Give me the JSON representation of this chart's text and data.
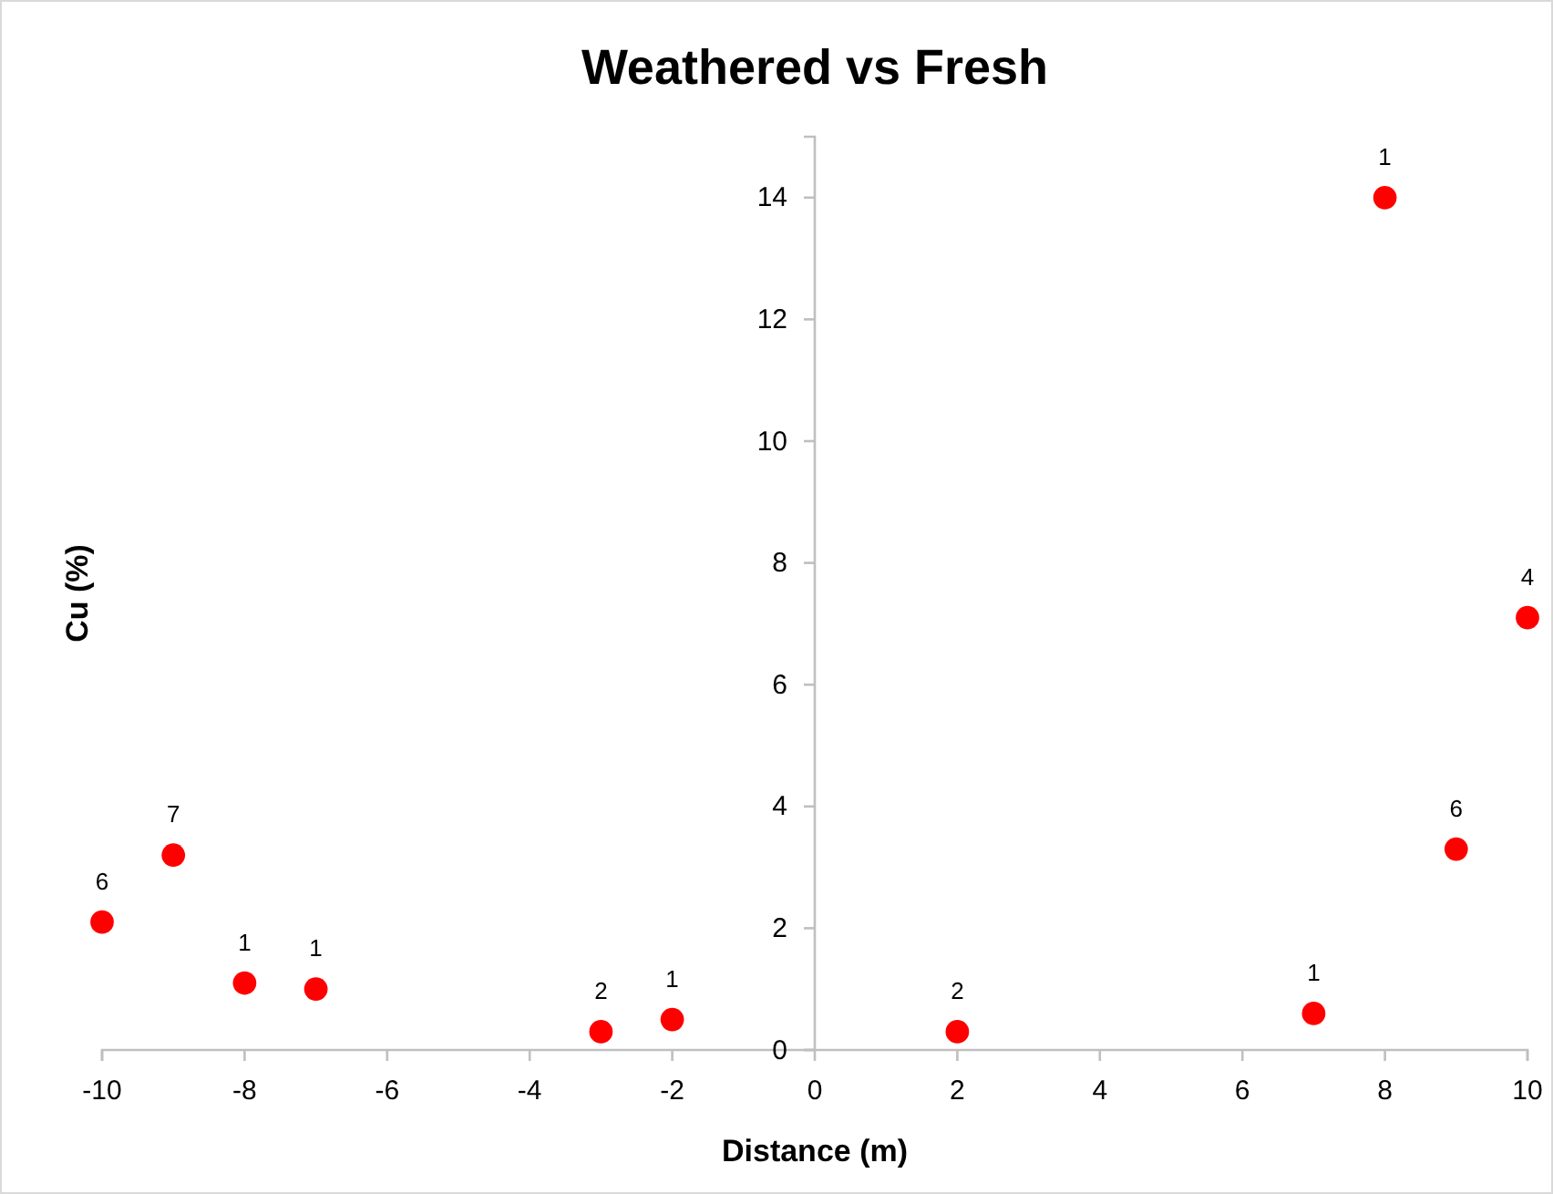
{
  "chart_data": {
    "type": "scatter",
    "title": "Weathered vs Fresh",
    "xlabel": "Distance (m)",
    "ylabel": "Cu (%)",
    "x": [
      -10,
      -9,
      -8,
      -7,
      -3,
      -2,
      2,
      7,
      8,
      9,
      10
    ],
    "series": [
      {
        "color": "#ff0000",
        "values": [
          2.1,
          3.2,
          1.1,
          1.0,
          0.3,
          0.5,
          0.3,
          0.6,
          14.0,
          3.3,
          7.1
        ]
      }
    ],
    "annotations": [
      {
        "text": "6",
        "x": -10,
        "y": 2.1
      },
      {
        "text": "7",
        "x": -9,
        "y": 3.2
      },
      {
        "text": "1",
        "x": -8,
        "y": 1.1
      },
      {
        "text": "1",
        "x": -7,
        "y": 1.0
      },
      {
        "text": "2",
        "x": -3,
        "y": 0.3
      },
      {
        "text": "1",
        "x": -2,
        "y": 0.5
      },
      {
        "text": "2",
        "x": 2,
        "y": 0.3
      },
      {
        "text": "1",
        "x": 7,
        "y": 0.6
      },
      {
        "text": "1",
        "x": 8,
        "y": 14.0
      },
      {
        "text": "6",
        "x": 9,
        "y": 3.3
      },
      {
        "text": "4",
        "x": 10,
        "y": 7.1
      }
    ],
    "xlim": [
      -10,
      10
    ],
    "xticks": [
      -10,
      -8,
      -6,
      -4,
      -2,
      0,
      2,
      4,
      6,
      8,
      10
    ],
    "ylim": [
      0,
      15
    ],
    "yticks": [
      0,
      2,
      4,
      6,
      8,
      10,
      12,
      14
    ],
    "grid": false,
    "marker": "circle"
  }
}
